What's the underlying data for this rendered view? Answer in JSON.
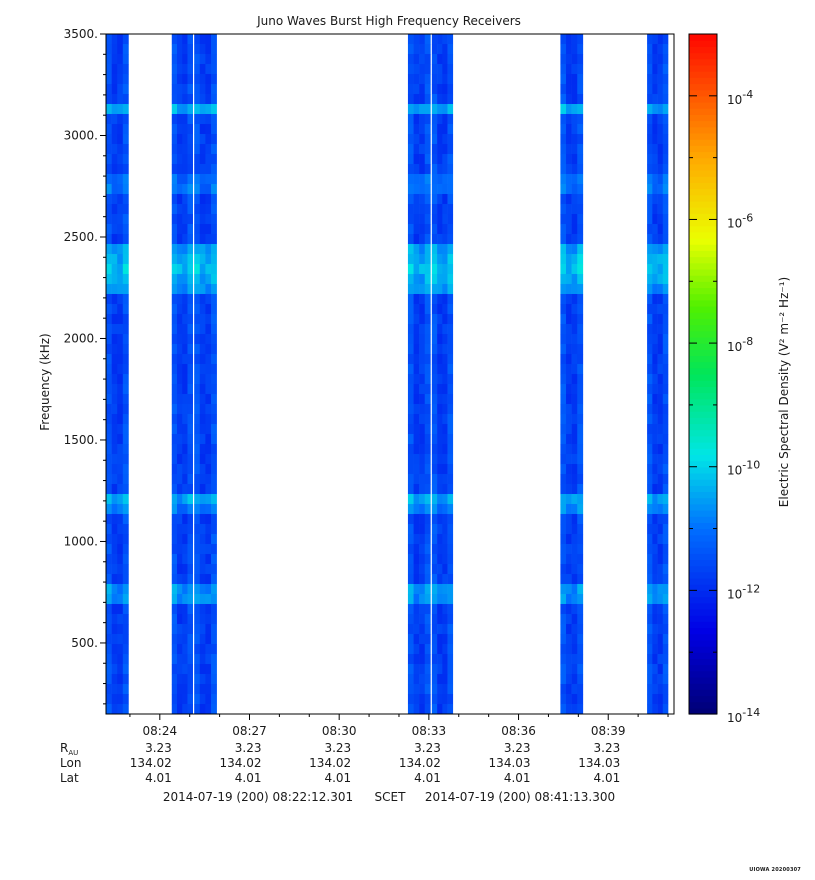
{
  "chart_data": {
    "type": "heatmap",
    "title": "Juno Waves Burst High Frequency Receivers",
    "ylabel": "Frequency (kHz)",
    "ylim": [
      150,
      3500
    ],
    "y_ticks": [
      "500.",
      "1000.",
      "1500.",
      "2000.",
      "2500.",
      "3000.",
      "3500."
    ],
    "y_tick_values": [
      500,
      1000,
      1500,
      2000,
      2500,
      3000,
      3500
    ],
    "xlim_minutes": [
      502.2,
      521.2
    ],
    "x_ticks": [
      "08:24",
      "08:27",
      "08:30",
      "08:33",
      "08:36",
      "08:39"
    ],
    "x_tick_minutes": [
      504,
      507,
      510,
      513,
      516,
      519
    ],
    "colorbar": {
      "label": "Electric Spectral Density (V² m⁻² Hz⁻¹)",
      "scale": "log",
      "range_exponent": [
        -14,
        -3
      ],
      "tick_base": "10",
      "tick_exponents": [
        "-14",
        "-12",
        "-10",
        "-8",
        "-6",
        "-4"
      ]
    },
    "bursts_minutes": [
      [
        502.2,
        502.95
      ],
      [
        504.4,
        505.1
      ],
      [
        505.15,
        505.9
      ],
      [
        512.3,
        513.05
      ],
      [
        513.1,
        513.8
      ],
      [
        517.4,
        518.15
      ],
      [
        520.3,
        521.0
      ]
    ],
    "background_level_exponent": -11.8,
    "enhanced_bands": [
      {
        "freq": 3130,
        "level": -10.6
      },
      {
        "freq": 2760,
        "level": -10.9
      },
      {
        "freq": 2350,
        "level": -10.3
      },
      {
        "freq": 1200,
        "level": -10.5
      },
      {
        "freq": 740,
        "level": -10.5
      }
    ]
  },
  "ephemeris": {
    "row_labels": [
      "R",
      "Lon",
      "Lat"
    ],
    "r_subscript": "AU",
    "columns": [
      {
        "r": "3.23",
        "lon": "134.02",
        "lat": "4.01"
      },
      {
        "r": "3.23",
        "lon": "134.02",
        "lat": "4.01"
      },
      {
        "r": "3.23",
        "lon": "134.02",
        "lat": "4.01"
      },
      {
        "r": "3.23",
        "lon": "134.02",
        "lat": "4.01"
      },
      {
        "r": "3.23",
        "lon": "134.03",
        "lat": "4.01"
      },
      {
        "r": "3.23",
        "lon": "134.03",
        "lat": "4.01"
      }
    ]
  },
  "time_range": {
    "start": "2014-07-19 (200) 08:22:12.301",
    "label": "SCET",
    "end": "2014-07-19 (200) 08:41:13.300"
  },
  "footer": "UIOWA 20200307"
}
